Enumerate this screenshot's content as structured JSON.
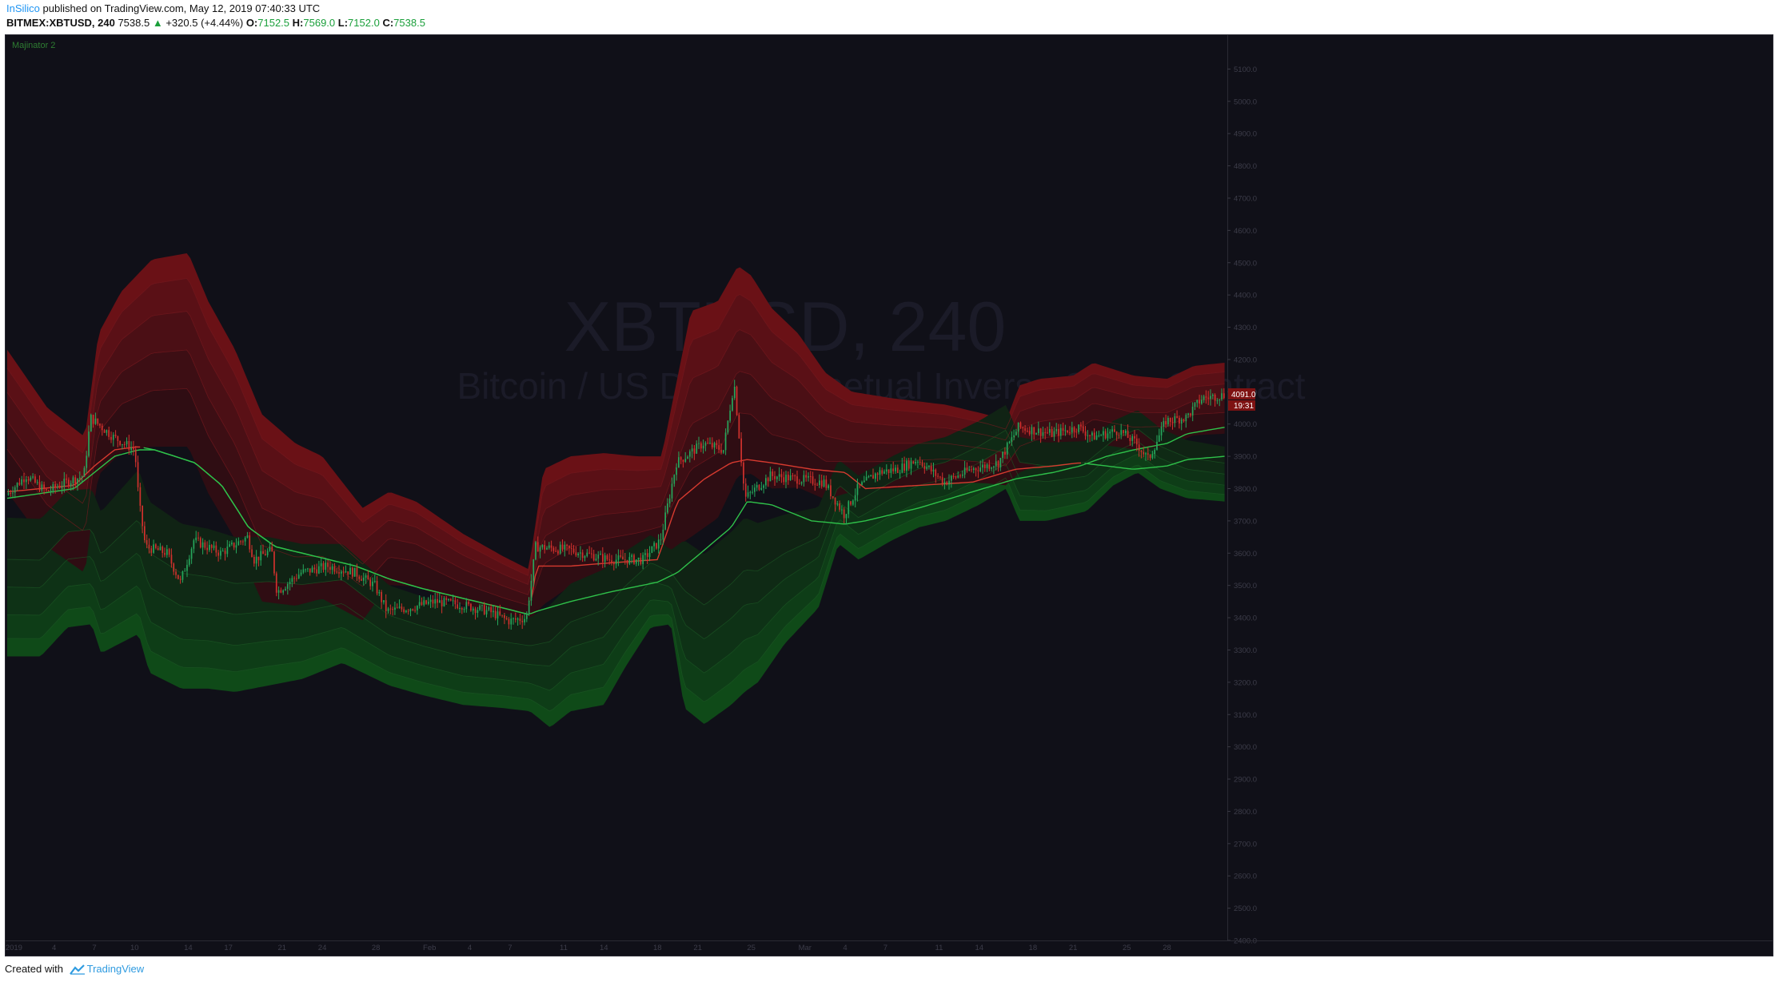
{
  "header": {
    "author": "InSilico",
    "published_text": "published on TradingView.com, May 12, 2019 07:40:33 UTC",
    "symbol": "BITMEX:XBTUSD, 240",
    "last": "7538.5",
    "change": "+320.5 (+4.44%)",
    "o_label": "O:",
    "o_value": "7152.5",
    "h_label": "H:",
    "h_value": "7569.0",
    "l_label": "L:",
    "l_value": "7152.0",
    "c_label": "C:",
    "c_value": "7538.5",
    "up_arrow": "▲"
  },
  "indicator_label": "Majinator 2",
  "watermark": {
    "symbol": "XBTUSD, 240",
    "description": "Bitcoin / US Dollar Perpetual Inverse Swap Contract"
  },
  "footer": {
    "created_with": "Created with",
    "brand": "TradingView"
  },
  "colors": {
    "background": "#101018",
    "bull": "#26a65b",
    "bear": "#d0312d",
    "upper_band": "#8b1a1a",
    "lower_band": "#145c1e"
  },
  "chart_data": {
    "type": "candlestick",
    "ylim": [
      2400,
      5200
    ],
    "y_ticks": [
      5100,
      5000,
      4900,
      4800,
      4700,
      4600,
      4500,
      4400,
      4300,
      4200,
      4100,
      4000,
      3900,
      3800,
      3700,
      3600,
      3500,
      3400,
      3300,
      3200,
      3100,
      3000,
      2900,
      2800,
      2700,
      2600,
      2500,
      2400
    ],
    "y_tick_labels": [
      "5100.0",
      "5000.0",
      "4900.0",
      "4800.0",
      "4700.0",
      "4600.0",
      "4500.0",
      "4400.0",
      "4300.0",
      "4200.0",
      "4100.0",
      "4000.0",
      "3900.0",
      "3800.0",
      "3700.0",
      "3600.0",
      "3500.0",
      "3400.0",
      "3300.0",
      "3200.0",
      "3100.0",
      "3000.0",
      "2900.0",
      "2800.0",
      "2700.0",
      "2600.0",
      "2500.0",
      "2400.0"
    ],
    "x_range": [
      0,
      91
    ],
    "x_ticks": [
      {
        "label": "2019",
        "x": 0.5
      },
      {
        "label": "4",
        "x": 3.5
      },
      {
        "label": "7",
        "x": 6.5
      },
      {
        "label": "10",
        "x": 9.5
      },
      {
        "label": "14",
        "x": 13.5
      },
      {
        "label": "17",
        "x": 16.5
      },
      {
        "label": "21",
        "x": 20.5
      },
      {
        "label": "24",
        "x": 23.5
      },
      {
        "label": "28",
        "x": 27.5
      },
      {
        "label": "Feb",
        "x": 31.5
      },
      {
        "label": "4",
        "x": 34.5
      },
      {
        "label": "7",
        "x": 37.5
      },
      {
        "label": "11",
        "x": 41.5
      },
      {
        "label": "14",
        "x": 44.5
      },
      {
        "label": "18",
        "x": 48.5
      },
      {
        "label": "21",
        "x": 51.5
      },
      {
        "label": "25",
        "x": 55.5
      },
      {
        "label": "Mar",
        "x": 59.5
      },
      {
        "label": "4",
        "x": 62.5
      },
      {
        "label": "7",
        "x": 65.5
      },
      {
        "label": "11",
        "x": 69.5
      },
      {
        "label": "14",
        "x": 72.5
      },
      {
        "label": "18",
        "x": 76.5
      },
      {
        "label": "21",
        "x": 79.5
      },
      {
        "label": "25",
        "x": 83.5
      },
      {
        "label": "28",
        "x": 86.5
      }
    ],
    "price_key": [
      [
        0,
        3780
      ],
      [
        1.5,
        3840
      ],
      [
        3,
        3790
      ],
      [
        4.5,
        3820
      ],
      [
        5.8,
        3840
      ],
      [
        6.3,
        4020
      ],
      [
        8,
        3960
      ],
      [
        9.6,
        3920
      ],
      [
        9.9,
        3760
      ],
      [
        10.4,
        3620
      ],
      [
        12,
        3600
      ],
      [
        13,
        3510
      ],
      [
        14,
        3640
      ],
      [
        16,
        3600
      ],
      [
        18,
        3650
      ],
      [
        18.5,
        3580
      ],
      [
        19.8,
        3610
      ],
      [
        20.2,
        3480
      ],
      [
        22,
        3540
      ],
      [
        24,
        3560
      ],
      [
        26,
        3540
      ],
      [
        27.5,
        3500
      ],
      [
        28.4,
        3420
      ],
      [
        30,
        3430
      ],
      [
        32,
        3450
      ],
      [
        34,
        3440
      ],
      [
        36,
        3420
      ],
      [
        37.5,
        3390
      ],
      [
        38.8,
        3400
      ],
      [
        39.5,
        3620
      ],
      [
        42,
        3610
      ],
      [
        45,
        3580
      ],
      [
        47.5,
        3580
      ],
      [
        48.8,
        3640
      ],
      [
        50,
        3880
      ],
      [
        52,
        3940
      ],
      [
        53.5,
        3920
      ],
      [
        54.3,
        4130
      ],
      [
        55.1,
        3770
      ],
      [
        57,
        3840
      ],
      [
        59,
        3830
      ],
      [
        61,
        3820
      ],
      [
        62.5,
        3720
      ],
      [
        63.5,
        3800
      ],
      [
        65,
        3850
      ],
      [
        66.5,
        3860
      ],
      [
        68,
        3890
      ],
      [
        70,
        3820
      ],
      [
        72,
        3860
      ],
      [
        74,
        3880
      ],
      [
        75.5,
        3990
      ],
      [
        78,
        3970
      ],
      [
        80,
        3990
      ],
      [
        81,
        3960
      ],
      [
        83,
        3980
      ],
      [
        84.3,
        3940
      ],
      [
        85.2,
        3890
      ],
      [
        86.5,
        4010
      ],
      [
        88,
        4020
      ],
      [
        89.2,
        4080
      ],
      [
        90.8,
        4090
      ]
    ],
    "ma_key": [
      [
        0,
        3790
      ],
      [
        5,
        3810
      ],
      [
        6.5,
        3870
      ],
      [
        8,
        3920
      ],
      [
        9.8,
        3930
      ],
      [
        11,
        3920
      ],
      [
        14,
        3880
      ],
      [
        16,
        3810
      ],
      [
        18,
        3680
      ],
      [
        20,
        3620
      ],
      [
        22,
        3600
      ],
      [
        26,
        3560
      ],
      [
        28.5,
        3520
      ],
      [
        31,
        3490
      ],
      [
        34,
        3460
      ],
      [
        37,
        3430
      ],
      [
        38.9,
        3410
      ],
      [
        39.5,
        3560
      ],
      [
        42,
        3560
      ],
      [
        45,
        3570
      ],
      [
        48.5,
        3580
      ],
      [
        50,
        3760
      ],
      [
        52,
        3830
      ],
      [
        54,
        3880
      ],
      [
        55.2,
        3890
      ],
      [
        57,
        3880
      ],
      [
        60,
        3860
      ],
      [
        62.5,
        3850
      ],
      [
        64,
        3800
      ],
      [
        68,
        3810
      ],
      [
        72,
        3820
      ],
      [
        75.2,
        3860
      ],
      [
        78,
        3870
      ],
      [
        80,
        3880
      ],
      [
        82,
        3870
      ],
      [
        84,
        3860
      ],
      [
        86.5,
        3870
      ],
      [
        88,
        3890
      ],
      [
        90.8,
        3900
      ]
    ],
    "signal_key": [
      [
        0,
        3770
      ],
      [
        5,
        3800
      ],
      [
        6.5,
        3850
      ],
      [
        8,
        3900
      ],
      [
        9.8,
        3920
      ],
      [
        11,
        3920
      ],
      [
        14,
        3880
      ],
      [
        16,
        3810
      ],
      [
        18,
        3680
      ],
      [
        20,
        3620
      ],
      [
        22,
        3600
      ],
      [
        26,
        3560
      ],
      [
        28.5,
        3520
      ],
      [
        31,
        3490
      ],
      [
        34,
        3460
      ],
      [
        37,
        3430
      ],
      [
        38.9,
        3410
      ],
      [
        39.5,
        3420
      ],
      [
        42,
        3450
      ],
      [
        45,
        3480
      ],
      [
        48.5,
        3510
      ],
      [
        50,
        3540
      ],
      [
        52,
        3610
      ],
      [
        54,
        3680
      ],
      [
        55.2,
        3760
      ],
      [
        57,
        3750
      ],
      [
        60,
        3700
      ],
      [
        62.5,
        3690
      ],
      [
        64,
        3700
      ],
      [
        68,
        3740
      ],
      [
        72,
        3790
      ],
      [
        75.2,
        3830
      ],
      [
        78,
        3850
      ],
      [
        80,
        3870
      ],
      [
        82,
        3900
      ],
      [
        84,
        3920
      ],
      [
        86.5,
        3940
      ],
      [
        88,
        3970
      ],
      [
        90.8,
        3990
      ]
    ],
    "upper_band_top_key": [
      [
        0,
        4230
      ],
      [
        3,
        4050
      ],
      [
        5.8,
        3960
      ],
      [
        6.8,
        4280
      ],
      [
        8.5,
        4410
      ],
      [
        10.8,
        4510
      ],
      [
        13.5,
        4530
      ],
      [
        15,
        4380
      ],
      [
        17,
        4230
      ],
      [
        19,
        4030
      ],
      [
        21.5,
        3940
      ],
      [
        23.5,
        3900
      ],
      [
        26.5,
        3740
      ],
      [
        28.5,
        3790
      ],
      [
        30.5,
        3760
      ],
      [
        34,
        3660
      ],
      [
        37,
        3590
      ],
      [
        38.9,
        3550
      ],
      [
        40,
        3860
      ],
      [
        42,
        3900
      ],
      [
        44.5,
        3910
      ],
      [
        47,
        3900
      ],
      [
        48.8,
        3900
      ],
      [
        51,
        4350
      ],
      [
        53,
        4380
      ],
      [
        54.5,
        4490
      ],
      [
        55.5,
        4460
      ],
      [
        57,
        4360
      ],
      [
        59,
        4280
      ],
      [
        61,
        4160
      ],
      [
        63,
        4100
      ],
      [
        66,
        4080
      ],
      [
        70,
        4060
      ],
      [
        73,
        4030
      ],
      [
        74.5,
        4010
      ],
      [
        75.5,
        4120
      ],
      [
        77,
        4140
      ],
      [
        79.5,
        4150
      ],
      [
        81,
        4190
      ],
      [
        84,
        4150
      ],
      [
        86.5,
        4140
      ],
      [
        88.5,
        4180
      ],
      [
        90.8,
        4190
      ]
    ],
    "upper_band_width_key": [
      [
        0,
        440
      ],
      [
        6.3,
        420
      ],
      [
        10.8,
        580
      ],
      [
        13.5,
        600
      ],
      [
        19,
        580
      ],
      [
        28.4,
        290
      ],
      [
        38.9,
        160
      ],
      [
        40,
        420
      ],
      [
        44.5,
        380
      ],
      [
        48.8,
        310
      ],
      [
        51,
        700
      ],
      [
        54.5,
        650
      ],
      [
        57,
        560
      ],
      [
        63,
        310
      ],
      [
        70,
        240
      ],
      [
        74.5,
        200
      ],
      [
        75.5,
        270
      ],
      [
        81,
        250
      ],
      [
        86.5,
        210
      ],
      [
        90.8,
        220
      ]
    ],
    "lower_band_bottom_key": [
      [
        0,
        3280
      ],
      [
        2.5,
        3280
      ],
      [
        4.5,
        3370
      ],
      [
        6.3,
        3380
      ],
      [
        7,
        3290
      ],
      [
        9.8,
        3350
      ],
      [
        10.6,
        3230
      ],
      [
        13,
        3180
      ],
      [
        15,
        3180
      ],
      [
        17,
        3170
      ],
      [
        19.5,
        3190
      ],
      [
        22,
        3210
      ],
      [
        25,
        3260
      ],
      [
        28.5,
        3190
      ],
      [
        31,
        3160
      ],
      [
        34,
        3130
      ],
      [
        37,
        3120
      ],
      [
        39,
        3110
      ],
      [
        40.5,
        3060
      ],
      [
        42,
        3110
      ],
      [
        44.5,
        3130
      ],
      [
        46,
        3240
      ],
      [
        48,
        3370
      ],
      [
        49.5,
        3380
      ],
      [
        50.5,
        3120
      ],
      [
        52,
        3070
      ],
      [
        54,
        3130
      ],
      [
        55,
        3170
      ],
      [
        56,
        3200
      ],
      [
        58,
        3320
      ],
      [
        60.5,
        3430
      ],
      [
        62,
        3630
      ],
      [
        63.5,
        3580
      ],
      [
        66,
        3640
      ],
      [
        68,
        3680
      ],
      [
        70,
        3700
      ],
      [
        72.5,
        3750
      ],
      [
        74.5,
        3800
      ],
      [
        75.5,
        3700
      ],
      [
        77.5,
        3700
      ],
      [
        80.5,
        3730
      ],
      [
        82.5,
        3810
      ],
      [
        84.3,
        3850
      ],
      [
        86,
        3800
      ],
      [
        88,
        3770
      ],
      [
        90.8,
        3760
      ]
    ],
    "lower_band_width_key": [
      [
        0,
        430
      ],
      [
        6.3,
        420
      ],
      [
        10.6,
        530
      ],
      [
        19.5,
        460
      ],
      [
        28.5,
        310
      ],
      [
        39,
        290
      ],
      [
        40.5,
        380
      ],
      [
        44.5,
        420
      ],
      [
        49.5,
        230
      ],
      [
        50.5,
        520
      ],
      [
        55,
        540
      ],
      [
        58,
        400
      ],
      [
        62,
        260
      ],
      [
        70,
        260
      ],
      [
        75.5,
        260
      ],
      [
        82.5,
        200
      ],
      [
        90.8,
        170
      ]
    ],
    "last_price_label": "4091.0",
    "countdown_label": "19:31",
    "last_price": 4091
  }
}
